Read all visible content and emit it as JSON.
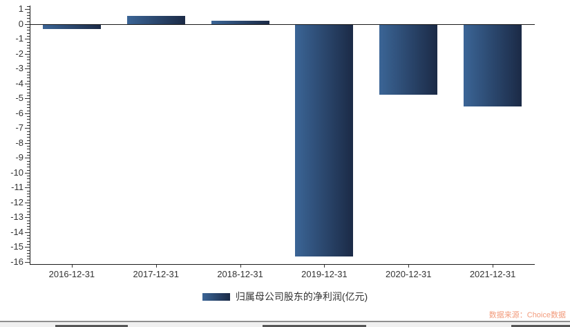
{
  "chart_data": {
    "type": "bar",
    "title": "",
    "xlabel": "",
    "ylabel": "",
    "categories": [
      "2016-12-31",
      "2017-12-31",
      "2018-12-31",
      "2019-12-31",
      "2020-12-31",
      "2021-12-31"
    ],
    "series": [
      {
        "name": "归属母公司股东的净利润(亿元)",
        "values": [
          -0.35,
          0.55,
          0.22,
          -15.66,
          -4.76,
          -5.53
        ]
      }
    ],
    "ylim": [
      -16.15,
      1.25
    ],
    "yticks": [
      1,
      0,
      -1,
      -2,
      -3,
      -4,
      -5,
      -6,
      -7,
      -8,
      -9,
      -10,
      -11,
      -12,
      -13,
      -14,
      -15,
      -16
    ],
    "grid": false,
    "legend_position": "bottom",
    "bar_gradient": [
      "#3b6596",
      "#1b2a46"
    ],
    "axis_color": "#333333"
  },
  "legend": {
    "label": "归属母公司股东的净利润(亿元)"
  },
  "footer": {
    "source_text": "数据来源：Choice数据",
    "color": "#f29b7c"
  }
}
